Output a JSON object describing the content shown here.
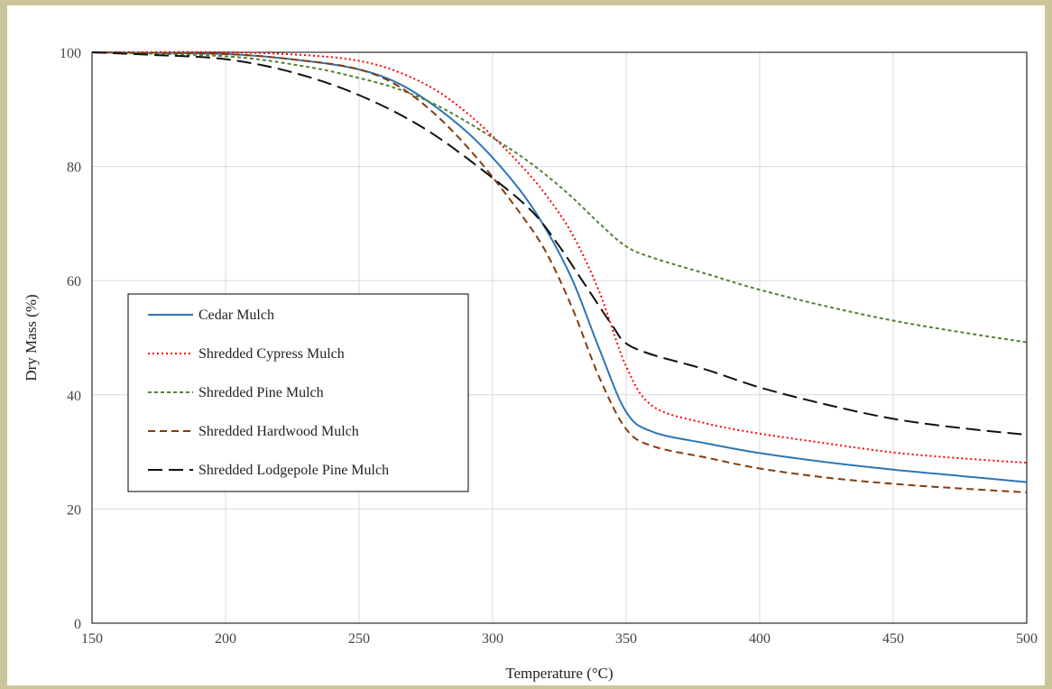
{
  "chart_data": {
    "type": "line",
    "title": "",
    "xlabel": "Temperature  (°C)",
    "ylabel": "Dry Mass (%)",
    "xlim": [
      150,
      500
    ],
    "ylim": [
      0,
      100
    ],
    "x_ticks": [
      150,
      200,
      250,
      300,
      350,
      400,
      450,
      500
    ],
    "y_ticks": [
      0,
      20,
      40,
      60,
      80,
      100
    ],
    "grid": true,
    "legend_position": "center-left",
    "series": [
      {
        "name": "Cedar Mulch",
        "color": "#2e75b6",
        "style": "solid",
        "points": [
          [
            150,
            100
          ],
          [
            200,
            99.7
          ],
          [
            230,
            98.5
          ],
          [
            250,
            97
          ],
          [
            265,
            94.5
          ],
          [
            280,
            90
          ],
          [
            295,
            84
          ],
          [
            310,
            76
          ],
          [
            320,
            69
          ],
          [
            330,
            60
          ],
          [
            340,
            48
          ],
          [
            350,
            37
          ],
          [
            360,
            33.5
          ],
          [
            380,
            31.5
          ],
          [
            400,
            29.8
          ],
          [
            425,
            28.2
          ],
          [
            450,
            26.9
          ],
          [
            475,
            25.8
          ],
          [
            500,
            24.7
          ]
        ]
      },
      {
        "name": "Shredded Cypress Mulch",
        "color": "#ff0000",
        "style": "dotted",
        "points": [
          [
            150,
            100
          ],
          [
            200,
            100
          ],
          [
            230,
            99.5
          ],
          [
            250,
            98.5
          ],
          [
            265,
            96.5
          ],
          [
            280,
            93
          ],
          [
            295,
            87.5
          ],
          [
            310,
            80.5
          ],
          [
            320,
            75
          ],
          [
            330,
            68
          ],
          [
            340,
            58
          ],
          [
            350,
            45
          ],
          [
            360,
            38
          ],
          [
            380,
            35
          ],
          [
            400,
            33.2
          ],
          [
            425,
            31.5
          ],
          [
            450,
            29.9
          ],
          [
            475,
            28.9
          ],
          [
            500,
            28.1
          ]
        ]
      },
      {
        "name": "Shredded Pine Mulch",
        "color": "#548235",
        "style": "short-dash",
        "points": [
          [
            150,
            100
          ],
          [
            200,
            99.3
          ],
          [
            230,
            97.5
          ],
          [
            250,
            95.5
          ],
          [
            265,
            93.5
          ],
          [
            280,
            90.5
          ],
          [
            295,
            86.5
          ],
          [
            310,
            82
          ],
          [
            320,
            78.5
          ],
          [
            330,
            74.5
          ],
          [
            340,
            70
          ],
          [
            350,
            66
          ],
          [
            360,
            64
          ],
          [
            380,
            61.2
          ],
          [
            400,
            58.4
          ],
          [
            425,
            55.5
          ],
          [
            450,
            53
          ],
          [
            475,
            51
          ],
          [
            500,
            49.2
          ]
        ]
      },
      {
        "name": "Shredded Hardwood Mulch",
        "color": "#843c0c",
        "style": "dash",
        "points": [
          [
            150,
            100
          ],
          [
            200,
            99.7
          ],
          [
            230,
            98.5
          ],
          [
            250,
            97
          ],
          [
            265,
            94
          ],
          [
            280,
            88.5
          ],
          [
            295,
            81
          ],
          [
            310,
            72
          ],
          [
            320,
            65
          ],
          [
            330,
            55
          ],
          [
            340,
            43
          ],
          [
            350,
            34
          ],
          [
            360,
            31
          ],
          [
            380,
            29
          ],
          [
            400,
            27.1
          ],
          [
            425,
            25.5
          ],
          [
            450,
            24.4
          ],
          [
            475,
            23.6
          ],
          [
            500,
            22.9
          ]
        ]
      },
      {
        "name": "Shredded Lodgepole Pine Mulch",
        "color": "#111111",
        "style": "long-dash",
        "points": [
          [
            150,
            100
          ],
          [
            175,
            99.5
          ],
          [
            200,
            98.8
          ],
          [
            225,
            96.5
          ],
          [
            250,
            92.5
          ],
          [
            275,
            86.5
          ],
          [
            300,
            78
          ],
          [
            315,
            72
          ],
          [
            325,
            66
          ],
          [
            335,
            59
          ],
          [
            345,
            52
          ],
          [
            350,
            49
          ],
          [
            360,
            47
          ],
          [
            380,
            44.4
          ],
          [
            400,
            41.3
          ],
          [
            425,
            38.3
          ],
          [
            450,
            35.8
          ],
          [
            475,
            34.2
          ],
          [
            500,
            33
          ]
        ]
      }
    ]
  }
}
